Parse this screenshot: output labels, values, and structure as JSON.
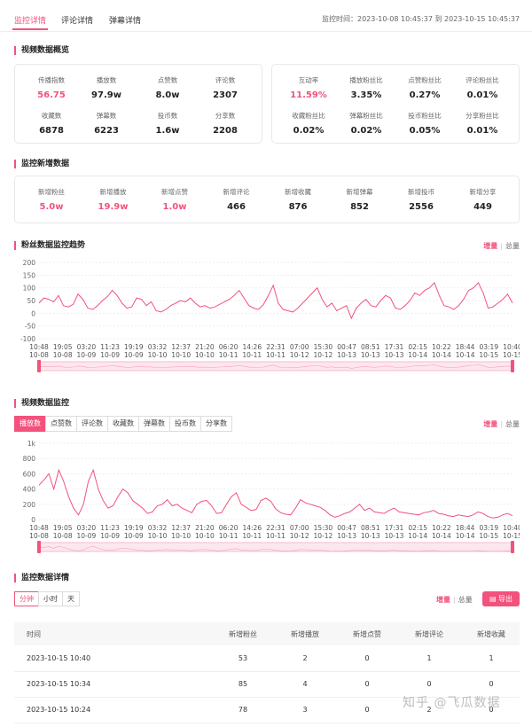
{
  "tabs": [
    "监控详情",
    "评论详情",
    "弹幕详情"
  ],
  "period": "监控时间：2023-10-08 10:45:37 到 2023-10-15 10:45:37",
  "overview": {
    "title": "视频数据概览",
    "left": [
      {
        "label": "传播指数",
        "value": "56.75",
        "highlight": true
      },
      {
        "label": "播放数",
        "value": "97.9w"
      },
      {
        "label": "点赞数",
        "value": "8.0w"
      },
      {
        "label": "评论数",
        "value": "2307"
      },
      {
        "label": "收藏数",
        "value": "6878"
      },
      {
        "label": "弹幕数",
        "value": "6223"
      },
      {
        "label": "投币数",
        "value": "1.6w"
      },
      {
        "label": "分享数",
        "value": "2208"
      }
    ],
    "right": [
      {
        "label": "互动率",
        "value": "11.59%",
        "highlight": true
      },
      {
        "label": "播放粉丝比",
        "value": "3.35%"
      },
      {
        "label": "点赞粉丝比",
        "value": "0.27%"
      },
      {
        "label": "评论粉丝比",
        "value": "0.01%"
      },
      {
        "label": "收藏粉丝比",
        "value": "0.02%"
      },
      {
        "label": "弹幕粉丝比",
        "value": "0.02%"
      },
      {
        "label": "投币粉丝比",
        "value": "0.05%"
      },
      {
        "label": "分享粉丝比",
        "value": "0.01%"
      }
    ]
  },
  "new_data": {
    "title": "监控新增数据",
    "items": [
      {
        "label": "新增粉丝",
        "value": "5.0w",
        "highlight": true
      },
      {
        "label": "新增播放",
        "value": "19.9w",
        "highlight": true
      },
      {
        "label": "新增点赞",
        "value": "1.0w",
        "highlight": true
      },
      {
        "label": "新增评论",
        "value": "466"
      },
      {
        "label": "新增收藏",
        "value": "876"
      },
      {
        "label": "新增弹幕",
        "value": "852"
      },
      {
        "label": "新增投币",
        "value": "2556"
      },
      {
        "label": "新增分享",
        "value": "449"
      }
    ]
  },
  "fans_chart": {
    "title": "粉丝数据监控趋势",
    "toggle_on": "增量",
    "toggle_off": "总量"
  },
  "video_chart": {
    "title": "视频数据监控",
    "tabs": [
      "播放数",
      "点赞数",
      "评论数",
      "收藏数",
      "弹幕数",
      "投币数",
      "分享数"
    ],
    "toggle_on": "增量",
    "toggle_off": "总量"
  },
  "detail": {
    "title": "监控数据详情",
    "granularity": [
      "分钟",
      "小时",
      "天"
    ],
    "toggle_on": "增量",
    "toggle_off": "总量",
    "export_label": "导出",
    "columns": [
      "时间",
      "新增粉丝",
      "新增播放",
      "新增点赞",
      "新增评论",
      "新增收藏"
    ],
    "rows": [
      [
        "2023-10-15 10:40",
        "53",
        "2",
        "0",
        "1",
        "1"
      ],
      [
        "2023-10-15 10:34",
        "85",
        "4",
        "0",
        "0",
        "0"
      ],
      [
        "2023-10-15 10:24",
        "78",
        "3",
        "0",
        "2",
        "0"
      ]
    ]
  },
  "watermark": "知乎 @飞瓜数据",
  "chart_data": [
    {
      "type": "line",
      "title": "粉丝数据监控趋势",
      "ylim": [
        -100,
        200
      ],
      "yticks": [
        "200",
        "150",
        "100",
        "50",
        "0",
        "-50",
        "-100"
      ],
      "xticks": [
        [
          "10:48",
          "10-08"
        ],
        [
          "19:05",
          "10-08"
        ],
        [
          "03:20",
          "10-09"
        ],
        [
          "11:23",
          "10-09"
        ],
        [
          "19:19",
          "10-09"
        ],
        [
          "03:32",
          "10-10"
        ],
        [
          "12:37",
          "10-10"
        ],
        [
          "21:20",
          "10-10"
        ],
        [
          "06:20",
          "10-11"
        ],
        [
          "14:26",
          "10-11"
        ],
        [
          "22:31",
          "10-11"
        ],
        [
          "07:00",
          "10-12"
        ],
        [
          "15:30",
          "10-12"
        ],
        [
          "00:47",
          "10-13"
        ],
        [
          "08:51",
          "10-13"
        ],
        [
          "17:31",
          "10-13"
        ],
        [
          "02:15",
          "10-14"
        ],
        [
          "10:22",
          "10-14"
        ],
        [
          "18:44",
          "10-14"
        ],
        [
          "03:19",
          "10-15"
        ],
        [
          "10:40",
          "10-15"
        ]
      ],
      "series": [
        {
          "values": [
            40,
            60,
            55,
            45,
            70,
            30,
            25,
            35,
            75,
            55,
            20,
            15,
            30,
            50,
            65,
            90,
            70,
            40,
            20,
            25,
            60,
            55,
            30,
            45,
            10,
            5,
            15,
            30,
            40,
            50,
            45,
            60,
            40,
            25,
            30,
            20,
            25,
            35,
            45,
            55,
            70,
            90,
            60,
            30,
            20,
            15,
            35,
            70,
            110,
            40,
            15,
            10,
            5,
            20,
            40,
            60,
            80,
            100,
            55,
            25,
            40,
            10,
            20,
            30,
            -20,
            20,
            40,
            55,
            30,
            25,
            50,
            70,
            60,
            20,
            15,
            30,
            50,
            80,
            70,
            90,
            100,
            120,
            70,
            30,
            25,
            15,
            30,
            55,
            90,
            100,
            120,
            80,
            20,
            25,
            40,
            55,
            75,
            40
          ]
        }
      ]
    },
    {
      "type": "line",
      "title": "视频数据监控",
      "ylim": [
        0,
        1000
      ],
      "yticks": [
        "1k",
        "800",
        "600",
        "400",
        "200",
        "0"
      ],
      "xticks": [
        [
          "10:48",
          "10-08"
        ],
        [
          "19:05",
          "10-08"
        ],
        [
          "03:20",
          "10-09"
        ],
        [
          "11:23",
          "10-09"
        ],
        [
          "19:19",
          "10-09"
        ],
        [
          "03:32",
          "10-10"
        ],
        [
          "12:37",
          "10-10"
        ],
        [
          "21:20",
          "10-10"
        ],
        [
          "06:20",
          "10-11"
        ],
        [
          "14:26",
          "10-11"
        ],
        [
          "22:31",
          "10-11"
        ],
        [
          "07:00",
          "10-12"
        ],
        [
          "15:30",
          "10-12"
        ],
        [
          "00:47",
          "10-13"
        ],
        [
          "08:51",
          "10-13"
        ],
        [
          "17:31",
          "10-13"
        ],
        [
          "02:15",
          "10-14"
        ],
        [
          "10:22",
          "10-14"
        ],
        [
          "18:44",
          "10-14"
        ],
        [
          "03:19",
          "10-15"
        ],
        [
          "10:40",
          "10-15"
        ]
      ],
      "series": [
        {
          "values": [
            450,
            520,
            600,
            400,
            650,
            500,
            300,
            150,
            60,
            200,
            500,
            650,
            400,
            250,
            150,
            180,
            300,
            400,
            350,
            250,
            200,
            150,
            80,
            100,
            180,
            200,
            260,
            180,
            200,
            150,
            120,
            90,
            200,
            240,
            250,
            180,
            80,
            90,
            200,
            300,
            350,
            200,
            160,
            120,
            130,
            250,
            280,
            240,
            140,
            90,
            70,
            60,
            150,
            260,
            220,
            200,
            180,
            160,
            120,
            60,
            30,
            50,
            80,
            100,
            150,
            200,
            120,
            150,
            100,
            90,
            80,
            120,
            150,
            100,
            90,
            80,
            70,
            60,
            90,
            100,
            120,
            80,
            70,
            50,
            40,
            60,
            50,
            40,
            60,
            100,
            80,
            40,
            20,
            30,
            60,
            80,
            50
          ]
        }
      ]
    }
  ]
}
